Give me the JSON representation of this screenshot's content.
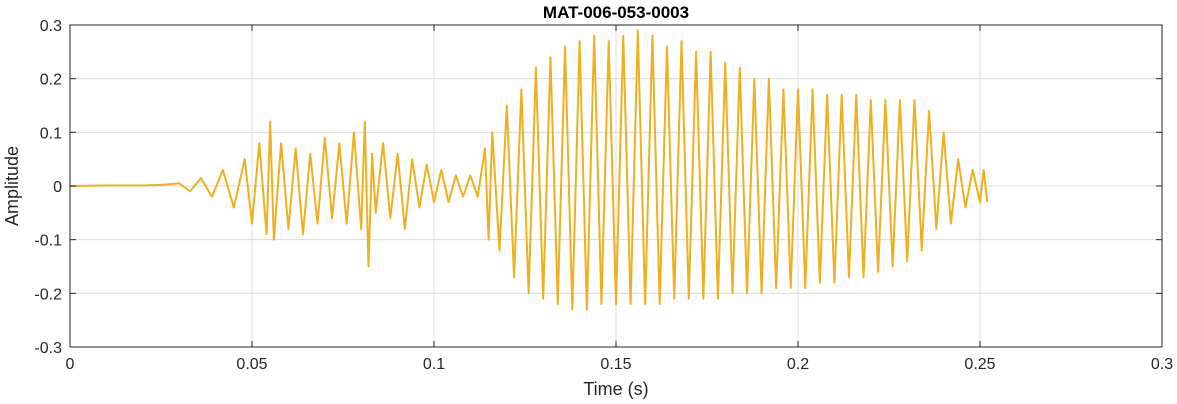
{
  "chart_data": {
    "type": "line",
    "title": "MAT-006-053-0003",
    "xlabel": "Time (s)",
    "ylabel": "Amplitude",
    "xlim": [
      0,
      0.3
    ],
    "ylim": [
      -0.3,
      0.3
    ],
    "x_ticks": [
      0,
      0.05,
      0.1,
      0.15,
      0.2,
      0.25,
      0.3
    ],
    "x_tick_labels": [
      "0",
      "0.05",
      "0.1",
      "0.15",
      "0.2",
      "0.25",
      "0.3"
    ],
    "y_ticks": [
      -0.3,
      -0.2,
      -0.1,
      0,
      0.1,
      0.2,
      0.3
    ],
    "y_tick_labels": [
      "-0.3",
      "-0.2",
      "-0.1",
      "0",
      "0.1",
      "0.2",
      "0.3"
    ],
    "grid": true,
    "series": [
      {
        "color": "#EDB120",
        "x": [
          0,
          0.01,
          0.02,
          0.025,
          0.03,
          0.033,
          0.036,
          0.039,
          0.042,
          0.045,
          0.048,
          0.05,
          0.052,
          0.054,
          0.055,
          0.056,
          0.058,
          0.06,
          0.062,
          0.064,
          0.066,
          0.068,
          0.07,
          0.072,
          0.074,
          0.076,
          0.078,
          0.08,
          0.081,
          0.082,
          0.083,
          0.084,
          0.086,
          0.088,
          0.09,
          0.092,
          0.094,
          0.096,
          0.098,
          0.1,
          0.102,
          0.104,
          0.106,
          0.108,
          0.11,
          0.112,
          0.114,
          0.115,
          0.116,
          0.118,
          0.12,
          0.122,
          0.124,
          0.126,
          0.128,
          0.13,
          0.132,
          0.134,
          0.136,
          0.138,
          0.14,
          0.142,
          0.144,
          0.146,
          0.148,
          0.15,
          0.152,
          0.154,
          0.156,
          0.158,
          0.16,
          0.162,
          0.164,
          0.166,
          0.168,
          0.17,
          0.172,
          0.174,
          0.176,
          0.178,
          0.18,
          0.182,
          0.184,
          0.186,
          0.188,
          0.19,
          0.192,
          0.194,
          0.196,
          0.198,
          0.2,
          0.202,
          0.204,
          0.206,
          0.208,
          0.21,
          0.212,
          0.214,
          0.216,
          0.218,
          0.22,
          0.222,
          0.224,
          0.226,
          0.228,
          0.23,
          0.232,
          0.234,
          0.236,
          0.238,
          0.24,
          0.242,
          0.244,
          0.246,
          0.248,
          0.25,
          0.251,
          0.252
        ],
        "y": [
          0,
          0.001,
          0.001,
          0.002,
          0.005,
          -0.01,
          0.015,
          -0.02,
          0.03,
          -0.04,
          0.05,
          -0.07,
          0.08,
          -0.09,
          0.12,
          -0.1,
          0.08,
          -0.08,
          0.07,
          -0.09,
          0.06,
          -0.07,
          0.09,
          -0.06,
          0.08,
          -0.07,
          0.1,
          -0.08,
          0.12,
          -0.15,
          0.06,
          -0.05,
          0.08,
          -0.06,
          0.06,
          -0.08,
          0.05,
          -0.04,
          0.04,
          -0.03,
          0.03,
          -0.03,
          0.02,
          -0.02,
          0.02,
          -0.02,
          0.07,
          -0.1,
          0.1,
          -0.12,
          0.15,
          -0.17,
          0.18,
          -0.2,
          0.22,
          -0.21,
          0.24,
          -0.22,
          0.26,
          -0.23,
          0.27,
          -0.23,
          0.28,
          -0.22,
          0.27,
          -0.22,
          0.28,
          -0.22,
          0.29,
          -0.22,
          0.28,
          -0.22,
          0.26,
          -0.21,
          0.27,
          -0.21,
          0.25,
          -0.21,
          0.25,
          -0.21,
          0.23,
          -0.2,
          0.22,
          -0.2,
          0.2,
          -0.2,
          0.2,
          -0.19,
          0.18,
          -0.19,
          0.18,
          -0.19,
          0.18,
          -0.18,
          0.17,
          -0.18,
          0.17,
          -0.17,
          0.17,
          -0.17,
          0.16,
          -0.16,
          0.16,
          -0.15,
          0.16,
          -0.14,
          0.16,
          -0.12,
          0.14,
          -0.08,
          0.1,
          -0.07,
          0.05,
          -0.04,
          0.03,
          -0.03,
          0.03,
          -0.03
        ]
      }
    ]
  }
}
